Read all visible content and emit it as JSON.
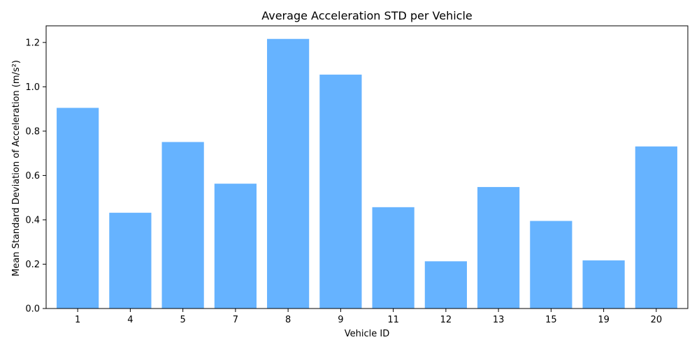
{
  "chart_data": {
    "type": "bar",
    "title": "Average Acceleration STD per Vehicle",
    "xlabel": "Vehicle ID",
    "ylabel": "Mean Standard Deviation of Acceleration (m/s²)",
    "categories": [
      "1",
      "4",
      "5",
      "7",
      "8",
      "9",
      "11",
      "12",
      "13",
      "15",
      "19",
      "20"
    ],
    "values": [
      0.905,
      0.432,
      0.751,
      0.563,
      1.216,
      1.055,
      0.457,
      0.213,
      0.548,
      0.395,
      0.217,
      0.731
    ],
    "ylim": [
      0,
      1.275
    ],
    "yticks": [
      "0.0",
      "0.2",
      "0.4",
      "0.6",
      "0.8",
      "1.0",
      "1.2"
    ],
    "grid": false,
    "legend": "none",
    "bar_color": "#66b3ff"
  }
}
